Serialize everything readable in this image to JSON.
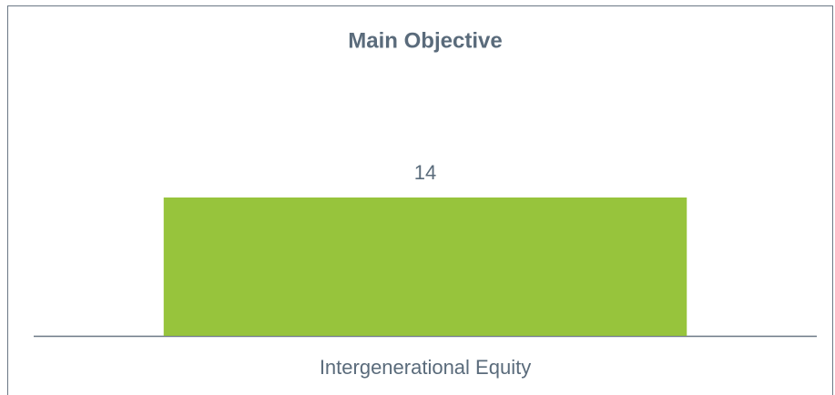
{
  "chart_data": {
    "type": "bar",
    "title": "Main Objective",
    "categories": [
      "Intergenerational Equity"
    ],
    "values": [
      14
    ],
    "color": "#97c43c"
  }
}
